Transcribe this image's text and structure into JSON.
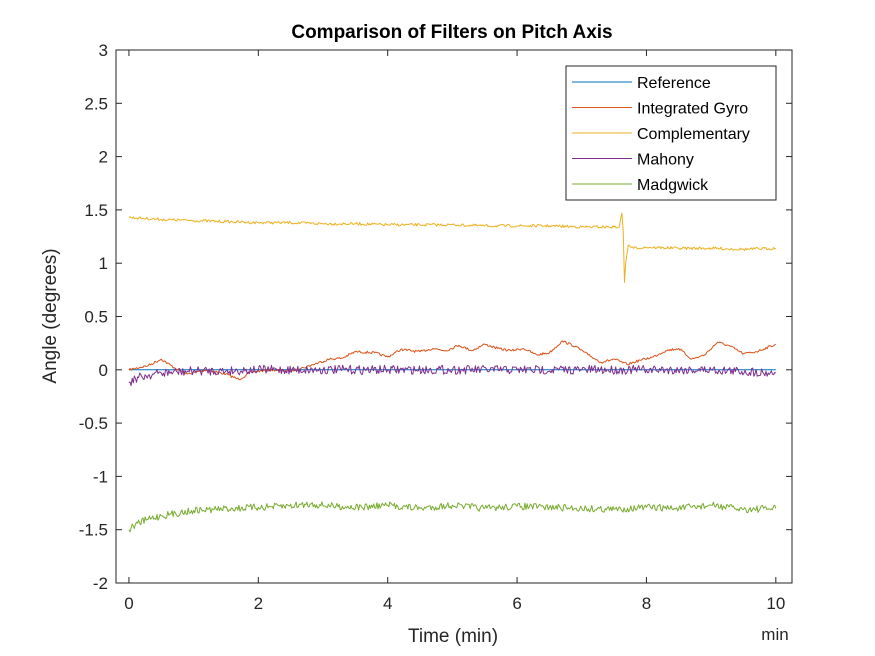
{
  "chart_data": {
    "type": "line",
    "title": "Comparison of Filters on Pitch Axis",
    "xlabel": "Time (min)",
    "ylabel": "Angle (degrees)",
    "x_unit_label": "min",
    "xlim": [
      -0.2,
      10.25
    ],
    "ylim": [
      -2,
      3
    ],
    "xticks": [
      0,
      2,
      4,
      6,
      8,
      10
    ],
    "xtick_labels": [
      "0",
      "2",
      "4",
      "6",
      "8",
      "10"
    ],
    "yticks": [
      -2,
      -1.5,
      -1,
      -0.5,
      0,
      0.5,
      1,
      1.5,
      2,
      2.5,
      3
    ],
    "ytick_labels": [
      "-2",
      "-1.5",
      "-1",
      "-0.5",
      "0",
      "0.5",
      "1",
      "1.5",
      "2",
      "2.5",
      "3"
    ],
    "grid": false,
    "legend_position": "top-right",
    "series": [
      {
        "name": "Reference",
        "color": "#0072BD",
        "x": [
          0,
          10
        ],
        "values": [
          0,
          0
        ]
      },
      {
        "name": "Integrated Gyro",
        "color": "#D95319",
        "x": [
          0,
          0.3,
          0.5,
          0.7,
          0.9,
          1.2,
          1.5,
          1.7,
          1.9,
          2.2,
          2.5,
          2.7,
          2.9,
          3.1,
          3.3,
          3.5,
          3.8,
          4.0,
          4.2,
          4.5,
          4.7,
          4.9,
          5.1,
          5.3,
          5.5,
          5.7,
          5.9,
          6.1,
          6.3,
          6.5,
          6.7,
          6.9,
          7.1,
          7.3,
          7.5,
          7.7,
          7.9,
          8.1,
          8.3,
          8.5,
          8.7,
          8.9,
          9.1,
          9.3,
          9.5,
          9.7,
          10
        ],
        "values": [
          0,
          0.04,
          0.1,
          0.02,
          -0.04,
          0.0,
          -0.04,
          -0.09,
          -0.02,
          0.0,
          -0.01,
          0.02,
          0.06,
          0.1,
          0.11,
          0.17,
          0.16,
          0.12,
          0.19,
          0.17,
          0.2,
          0.18,
          0.23,
          0.18,
          0.24,
          0.2,
          0.18,
          0.2,
          0.14,
          0.16,
          0.27,
          0.22,
          0.14,
          0.07,
          0.1,
          0.05,
          0.09,
          0.12,
          0.18,
          0.2,
          0.1,
          0.14,
          0.26,
          0.22,
          0.15,
          0.17,
          0.24
        ]
      },
      {
        "name": "Complementary",
        "color": "#EDB120",
        "x": [
          0,
          0.5,
          1.0,
          1.5,
          2.0,
          2.5,
          3.0,
          3.5,
          4.0,
          4.5,
          5.0,
          5.5,
          6.0,
          6.5,
          7.0,
          7.5,
          7.58,
          7.62,
          7.64,
          7.66,
          7.68,
          7.72,
          7.8,
          8.0,
          8.5,
          9.0,
          9.5,
          10
        ],
        "values": [
          1.43,
          1.41,
          1.4,
          1.39,
          1.38,
          1.38,
          1.37,
          1.37,
          1.36,
          1.36,
          1.36,
          1.35,
          1.35,
          1.35,
          1.34,
          1.34,
          1.34,
          1.47,
          1.3,
          0.82,
          1.0,
          1.17,
          1.14,
          1.15,
          1.14,
          1.14,
          1.13,
          1.14
        ]
      },
      {
        "name": "Mahony",
        "color": "#7E2F8E",
        "x": [
          0,
          0.1,
          0.3,
          0.5,
          0.8,
          1.0,
          1.5,
          2.0,
          3.0,
          4.0,
          5.0,
          6.0,
          7.0,
          8.0,
          9.0,
          10
        ],
        "values": [
          -0.12,
          -0.08,
          -0.05,
          -0.03,
          -0.02,
          -0.01,
          -0.01,
          0,
          0,
          0,
          0,
          0,
          0,
          0,
          0,
          -0.03
        ]
      },
      {
        "name": "Madgwick",
        "color": "#77AC30",
        "x": [
          0,
          0.1,
          0.3,
          0.5,
          0.8,
          1.0,
          1.3,
          1.6,
          2.0,
          2.4,
          2.8,
          3.2,
          3.6,
          4.0,
          4.5,
          5.0,
          5.5,
          6.0,
          6.5,
          7.0,
          7.5,
          8.0,
          8.5,
          9.0,
          9.5,
          10
        ],
        "values": [
          -1.5,
          -1.45,
          -1.4,
          -1.37,
          -1.34,
          -1.32,
          -1.31,
          -1.3,
          -1.29,
          -1.28,
          -1.26,
          -1.28,
          -1.29,
          -1.27,
          -1.3,
          -1.27,
          -1.3,
          -1.28,
          -1.29,
          -1.3,
          -1.31,
          -1.29,
          -1.3,
          -1.27,
          -1.31,
          -1.3
        ]
      }
    ]
  }
}
